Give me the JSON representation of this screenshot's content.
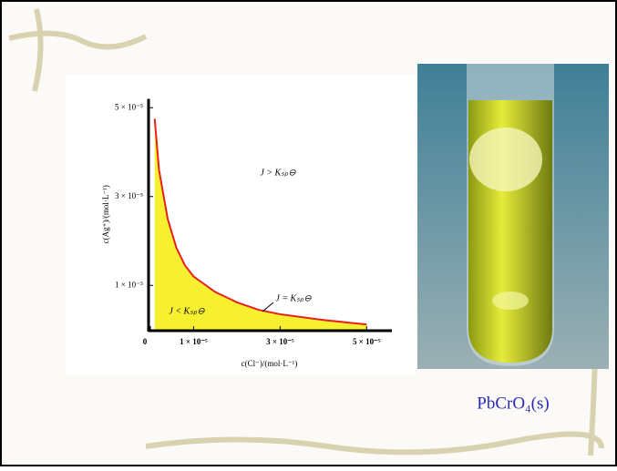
{
  "chart_data": {
    "type": "area",
    "y_label": "c(Ag⁺)/(mol·L⁻¹)",
    "x_label": "c(Cl⁻)/(mol·L⁻¹)",
    "annotations": [
      "J > Kₛₚ⊖",
      "J < Kₛₚ⊖",
      "J = Kₛₚ⊖"
    ],
    "x": [
      1e-06,
      2e-06,
      4e-06,
      6e-06,
      8e-06,
      1e-05,
      1.5e-05,
      2e-05,
      2.5e-05,
      3e-05,
      4e-05,
      5e-05
    ],
    "values": [
      4.75e-05,
      3.6e-05,
      2.5e-05,
      1.85e-05,
      1.45e-05,
      1.2e-05,
      8.5e-06,
      6.2e-06,
      4.5e-06,
      3.5e-06,
      2.2e-06,
      1.2e-06
    ],
    "color": "#e8201c",
    "fill": "#f7f030",
    "xlim": [
      0,
      5.5e-05
    ],
    "ylim": [
      0,
      5.2e-05
    ],
    "xticks": [
      0,
      {
        "value": 1e-05,
        "label": "1 × 10⁻⁵"
      },
      {
        "value": 3e-05,
        "label": "3 × 10⁻⁵"
      },
      {
        "value": 5e-05,
        "label": "5 × 10⁻⁵"
      }
    ],
    "yticks": [
      {
        "value": 1e-05,
        "label": "1 × 10⁻⁵"
      },
      {
        "value": 3e-05,
        "label": "3 × 10⁻⁵"
      },
      {
        "value": 5e-05,
        "label": "5 × 10⁻⁵"
      }
    ]
  },
  "caption": "PbCrO₄(s)"
}
